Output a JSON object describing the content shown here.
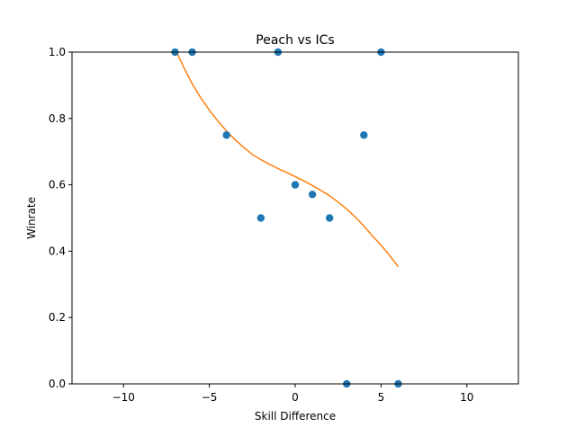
{
  "chart_data": {
    "type": "scatter",
    "title": "Peach vs ICs",
    "xlabel": "Skill Difference",
    "ylabel": "Winrate",
    "xlim": [
      -13,
      13
    ],
    "ylim": [
      0,
      1
    ],
    "xticks": [
      -10,
      -5,
      0,
      5,
      10
    ],
    "yticks": [
      0.0,
      0.2,
      0.4,
      0.6,
      0.8,
      1.0
    ],
    "xtick_labels": [
      "−10",
      "−5",
      "0",
      "5",
      "10"
    ],
    "ytick_labels": [
      "0.0",
      "0.2",
      "0.4",
      "0.6",
      "0.8",
      "1.0"
    ],
    "grid": false,
    "legend": false,
    "series": [
      {
        "kind": "scatter",
        "color": "#1f77b4",
        "x": [
          -7,
          -6,
          -4,
          -2,
          -1,
          0,
          1,
          2,
          3,
          4,
          5,
          6
        ],
        "y": [
          1.0,
          1.0,
          0.75,
          0.5,
          1.0,
          0.6,
          0.571,
          0.5,
          0.0,
          0.75,
          1.0,
          0.0
        ]
      },
      {
        "kind": "line",
        "color": "#ff7f0e",
        "x": [
          -6.9,
          -6.5,
          -6,
          -5.5,
          -5,
          -4.5,
          -4,
          -3.5,
          -3,
          -2.5,
          -2,
          -1.5,
          -1,
          -0.5,
          0,
          0.5,
          1,
          1.5,
          2,
          2.5,
          3,
          3.5,
          4,
          4.5,
          5,
          5.5,
          6
        ],
        "y": [
          1.0,
          0.955,
          0.905,
          0.862,
          0.825,
          0.792,
          0.762,
          0.736,
          0.713,
          0.692,
          0.676,
          0.662,
          0.649,
          0.637,
          0.625,
          0.612,
          0.598,
          0.583,
          0.567,
          0.548,
          0.527,
          0.503,
          0.476,
          0.446,
          0.418,
          0.387,
          0.353
        ]
      }
    ]
  }
}
